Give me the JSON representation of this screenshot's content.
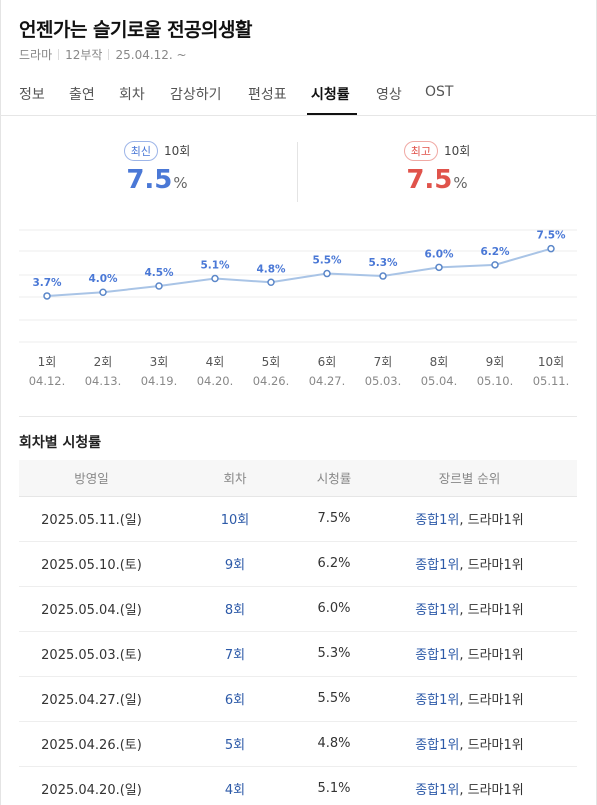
{
  "header": {
    "title": "언젠가는 슬기로울 전공의생활",
    "genre": "드라마",
    "episodes": "12부작",
    "date": "25.04.12. ~"
  },
  "tabs": [
    {
      "label": "정보"
    },
    {
      "label": "출연"
    },
    {
      "label": "회차"
    },
    {
      "label": "감상하기"
    },
    {
      "label": "편성표"
    },
    {
      "label": "시청률"
    },
    {
      "label": "영상"
    },
    {
      "label": "OST"
    }
  ],
  "active_tab": "시청률",
  "summary": {
    "latest": {
      "badge": "최신",
      "episode": "10회",
      "value": "7.5",
      "unit": "%"
    },
    "highest": {
      "badge": "최고",
      "episode": "10회",
      "value": "7.5",
      "unit": "%"
    },
    "colors": {
      "latest": "#4a78d6",
      "highest": "#e0534b"
    }
  },
  "chart_data": {
    "type": "line",
    "categories": [
      "1회",
      "2회",
      "3회",
      "4회",
      "5회",
      "6회",
      "7회",
      "8회",
      "9회",
      "10회"
    ],
    "dates": [
      "04.12.",
      "04.13.",
      "04.19.",
      "04.20.",
      "04.26.",
      "04.27.",
      "05.03.",
      "05.04.",
      "05.10.",
      "05.11."
    ],
    "values": [
      3.7,
      4.0,
      4.5,
      5.1,
      4.8,
      5.5,
      5.3,
      6.0,
      6.2,
      7.5
    ],
    "labels": [
      "3.7%",
      "4.0%",
      "4.5%",
      "5.1%",
      "4.8%",
      "5.5%",
      "5.3%",
      "6.0%",
      "6.2%",
      "7.5%"
    ],
    "ylim": [
      0,
      9
    ],
    "grid": true,
    "line_color": "#a9c4e6",
    "point_color": "#5b87c9"
  },
  "ratings_table": {
    "title": "회차별 시청률",
    "headers": [
      "방영일",
      "회차",
      "시청률",
      "장르별 순위"
    ],
    "rows": [
      {
        "date": "2025.05.11.(일)",
        "episode": "10회",
        "rating": "7.5%",
        "rank_total": "종합1위",
        "rank_sep": ", ",
        "rank_genre": "드라마1위"
      },
      {
        "date": "2025.05.10.(토)",
        "episode": "9회",
        "rating": "6.2%",
        "rank_total": "종합1위",
        "rank_sep": ", ",
        "rank_genre": "드라마1위"
      },
      {
        "date": "2025.05.04.(일)",
        "episode": "8회",
        "rating": "6.0%",
        "rank_total": "종합1위",
        "rank_sep": ", ",
        "rank_genre": "드라마1위"
      },
      {
        "date": "2025.05.03.(토)",
        "episode": "7회",
        "rating": "5.3%",
        "rank_total": "종합1위",
        "rank_sep": ", ",
        "rank_genre": "드라마1위"
      },
      {
        "date": "2025.04.27.(일)",
        "episode": "6회",
        "rating": "5.5%",
        "rank_total": "종합1위",
        "rank_sep": ", ",
        "rank_genre": "드라마1위"
      },
      {
        "date": "2025.04.26.(토)",
        "episode": "5회",
        "rating": "4.8%",
        "rank_total": "종합1위",
        "rank_sep": ", ",
        "rank_genre": "드라마1위"
      },
      {
        "date": "2025.04.20.(일)",
        "episode": "4회",
        "rating": "5.1%",
        "rank_total": "종합1위",
        "rank_sep": ", ",
        "rank_genre": "드라마1위"
      }
    ]
  }
}
